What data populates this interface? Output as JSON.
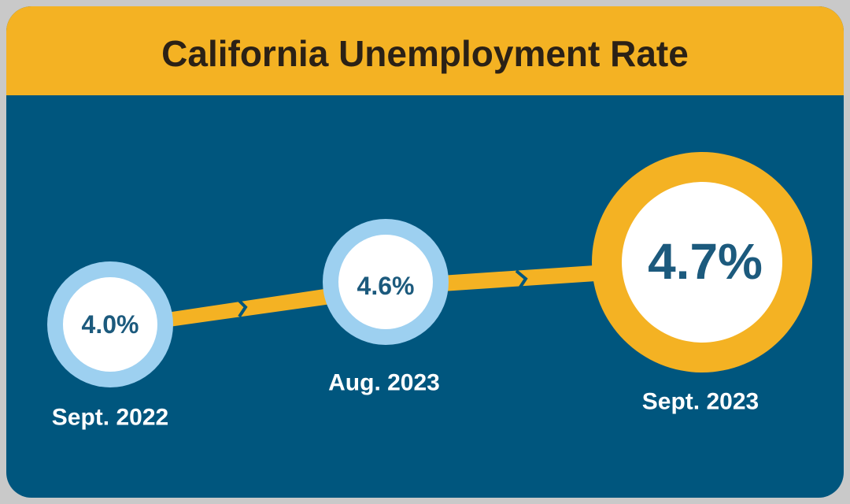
{
  "title": "California Unemployment Rate",
  "nodes": [
    {
      "value": "4.0%",
      "label": "Sept. 2022"
    },
    {
      "value": "4.6%",
      "label": "Aug. 2023"
    },
    {
      "value": "4.7%",
      "label": "Sept. 2023"
    }
  ]
}
